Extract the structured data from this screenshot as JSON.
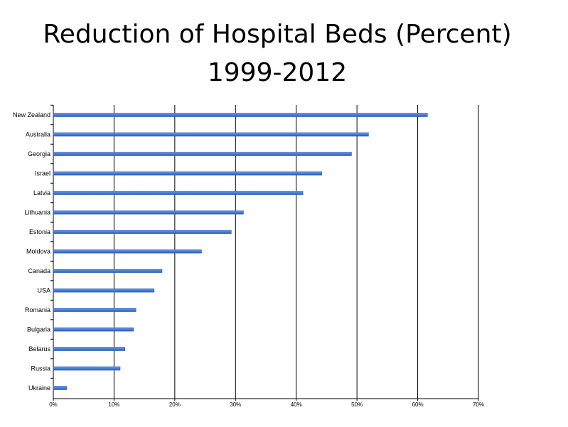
{
  "title": "Reduction of Hospital Beds (Percent)\n1999-2012",
  "chart_data": {
    "type": "bar",
    "orientation": "horizontal",
    "title": "Reduction of Hospital Beds (Percent) 1999-2012",
    "categories": [
      "New Zealand",
      "Australia",
      "Georgia",
      "Israel",
      "Latvia",
      "Lithuania",
      "Estonia",
      "Moldova",
      "Canada",
      "USA",
      "Romania",
      "Bulgaria",
      "Belarus",
      "Russia",
      "Ukraine"
    ],
    "values": [
      61.6,
      51.9,
      49.1,
      44.2,
      41.1,
      31.3,
      29.3,
      24.4,
      17.9,
      16.6,
      13.6,
      13.2,
      11.8,
      11.0,
      2.2
    ],
    "xlim": [
      0,
      70
    ],
    "x_ticks": [
      0,
      10,
      20,
      30,
      40,
      50,
      60,
      70
    ],
    "x_tick_labels": [
      "0%",
      "10%",
      "20%",
      "30%",
      "40%",
      "50%",
      "60%",
      "70%"
    ],
    "xlabel": "",
    "ylabel": "",
    "grid": "vertical",
    "bar_color": "#4a7fd6",
    "bar_edge_color": "#2a58b0"
  }
}
